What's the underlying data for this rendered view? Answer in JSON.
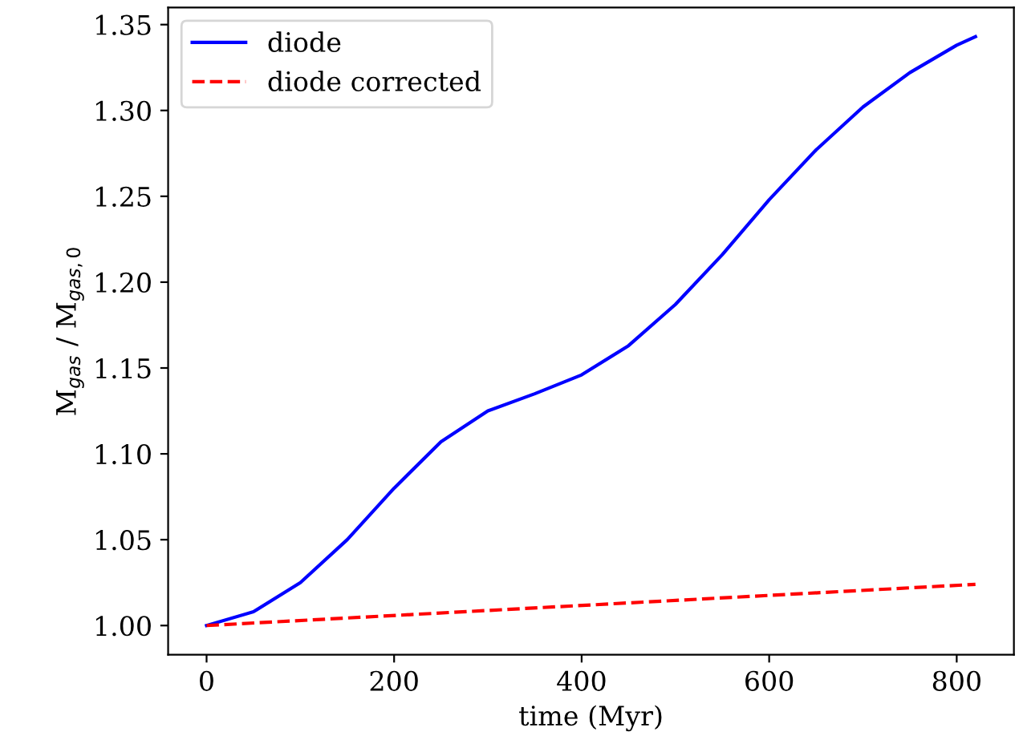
{
  "chart_data": {
    "type": "line",
    "xlabel": "time (Myr)",
    "ylabel": "M$_{gas}$ / M$_{gas,0}$",
    "xlim": [
      -41,
      861
    ],
    "ylim": [
      0.983,
      1.36
    ],
    "xticks": [
      0,
      200,
      400,
      600,
      800
    ],
    "yticks": [
      {
        "value": 1.0,
        "label": "1.00"
      },
      {
        "value": 1.05,
        "label": "1.05"
      },
      {
        "value": 1.1,
        "label": "1.10"
      },
      {
        "value": 1.15,
        "label": "1.15"
      },
      {
        "value": 1.2,
        "label": "1.20"
      },
      {
        "value": 1.25,
        "label": "1.25"
      },
      {
        "value": 1.3,
        "label": "1.30"
      },
      {
        "value": 1.35,
        "label": "1.35"
      }
    ],
    "grid": false,
    "legend": "top left",
    "series": [
      {
        "name": "diode",
        "color": "#0000ff",
        "line_style": "solid",
        "x": [
          0,
          50,
          100,
          150,
          200,
          250,
          300,
          350,
          400,
          450,
          500,
          550,
          600,
          650,
          700,
          750,
          800,
          820
        ],
        "values": [
          1.0,
          1.008,
          1.025,
          1.05,
          1.08,
          1.107,
          1.125,
          1.135,
          1.146,
          1.163,
          1.187,
          1.216,
          1.248,
          1.277,
          1.302,
          1.322,
          1.338,
          1.343
        ]
      },
      {
        "name": "diode corrected",
        "color": "#ff0000",
        "line_style": "dashed",
        "x": [
          0,
          820
        ],
        "values": [
          1.0,
          1.024
        ]
      }
    ]
  }
}
